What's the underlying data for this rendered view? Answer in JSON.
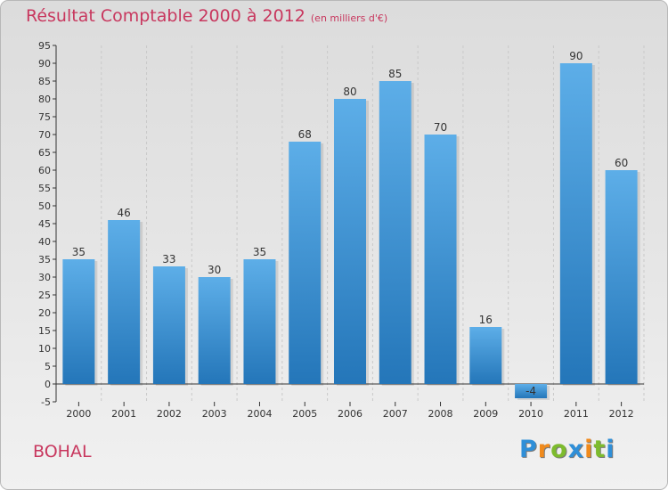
{
  "chart_data": {
    "type": "bar",
    "title": "Résultat Comptable 2000 à 2012",
    "subtitle": "(en milliers d'€)",
    "categories": [
      "2000",
      "2001",
      "2002",
      "2003",
      "2004",
      "2005",
      "2006",
      "2007",
      "2008",
      "2009",
      "2010",
      "2011",
      "2012"
    ],
    "values": [
      35,
      46,
      33,
      30,
      35,
      68,
      80,
      85,
      70,
      16,
      -4,
      90,
      60
    ],
    "data_labels": [
      "35",
      "46",
      "33",
      "30",
      "35",
      "68",
      "80",
      "85",
      "70",
      "16",
      "-4",
      "90",
      "60"
    ],
    "ylim": [
      -5,
      95
    ],
    "yticks": [
      -5,
      0,
      5,
      10,
      15,
      20,
      25,
      30,
      35,
      40,
      45,
      50,
      55,
      60,
      65,
      70,
      75,
      80,
      85,
      90,
      95
    ],
    "xlabel": "",
    "ylabel": "",
    "grid": "vertical dashed",
    "bar_color_top": "#5daee8",
    "bar_color_bottom": "#2476b9"
  },
  "place_name": "BOHAL",
  "logo": {
    "text": "Proxiti",
    "letters": [
      "P",
      "r",
      "o",
      "x",
      "i",
      "t",
      "i"
    ],
    "colors": [
      "#2f8fd8",
      "#f08a1c",
      "#7dbb2e",
      "#2f8fd8",
      "#f08a1c",
      "#7dbb2e",
      "#2f8fd8"
    ]
  },
  "colors": {
    "title": "#c8375e",
    "axis": "#333333",
    "grid": "#c9c9c9"
  }
}
